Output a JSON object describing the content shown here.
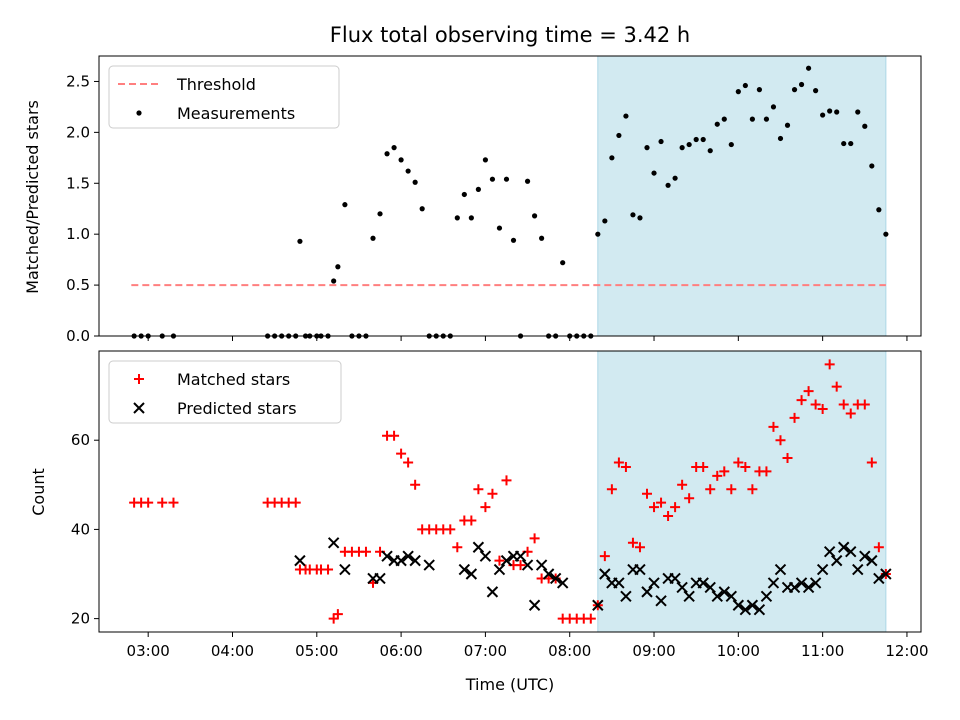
{
  "chart_data": [
    {
      "type": "scatter",
      "title": "Flux total observing time = 3.42 h",
      "xlabel": "",
      "ylabel": "Matched/Predicted stars",
      "xlim": [
        "02:25",
        "12:10"
      ],
      "ylim": [
        0,
        2.75
      ],
      "x_ticks": [
        "03:00",
        "04:00",
        "05:00",
        "06:00",
        "07:00",
        "08:00",
        "09:00",
        "10:00",
        "11:00",
        "12:00"
      ],
      "y_ticks": [
        "0.0",
        "0.5",
        "1.0",
        "1.5",
        "2.0",
        "2.5"
      ],
      "legend_position": "top-left",
      "highlight_span": {
        "start": "08:20",
        "end": "11:45",
        "color": "#add8e6"
      },
      "series": [
        {
          "name": "Threshold",
          "kind": "dashed-line",
          "color": "#ff7f7f",
          "x": [
            "02:48",
            "11:45"
          ],
          "y": [
            0.5,
            0.5
          ]
        },
        {
          "name": "Measurements",
          "kind": "dot",
          "color": "#000000",
          "x": [
            "02:50",
            "02:55",
            "03:00",
            "03:10",
            "03:18",
            "04:25",
            "04:30",
            "04:35",
            "04:40",
            "04:45",
            "04:48",
            "04:52",
            "04:55",
            "05:00",
            "05:03",
            "05:08",
            "05:12",
            "05:15",
            "05:20",
            "05:25",
            "05:30",
            "05:35",
            "05:40",
            "05:45",
            "05:50",
            "05:55",
            "06:00",
            "06:05",
            "06:10",
            "06:15",
            "06:20",
            "06:25",
            "06:30",
            "06:35",
            "06:40",
            "06:45",
            "06:50",
            "06:55",
            "07:00",
            "07:05",
            "07:10",
            "07:15",
            "07:20",
            "07:25",
            "07:30",
            "07:35",
            "07:40",
            "07:45",
            "07:50",
            "07:55",
            "08:00",
            "08:05",
            "08:10",
            "08:15",
            "08:20",
            "08:25",
            "08:30",
            "08:35",
            "08:40",
            "08:45",
            "08:50",
            "08:55",
            "09:00",
            "09:05",
            "09:10",
            "09:15",
            "09:20",
            "09:25",
            "09:30",
            "09:35",
            "09:40",
            "09:45",
            "09:50",
            "09:55",
            "10:00",
            "10:05",
            "10:10",
            "10:15",
            "10:20",
            "10:25",
            "10:30",
            "10:35",
            "10:40",
            "10:45",
            "10:50",
            "10:55",
            "11:00",
            "11:05",
            "11:10",
            "11:15",
            "11:20",
            "11:25",
            "11:30",
            "11:35",
            "11:40",
            "11:45"
          ],
          "y": [
            0,
            0,
            0,
            0,
            0,
            0,
            0,
            0,
            0,
            0,
            0.93,
            0,
            0,
            0,
            0,
            0,
            0.54,
            0.68,
            1.29,
            0,
            0,
            0,
            0.96,
            1.2,
            1.79,
            1.85,
            1.73,
            1.62,
            1.51,
            1.25,
            0,
            0,
            0,
            0,
            1.16,
            1.39,
            1.16,
            1.44,
            1.73,
            1.54,
            1.06,
            1.54,
            0.94,
            0,
            1.52,
            1.18,
            0.96,
            0,
            0,
            0.72,
            0,
            0,
            0,
            0,
            1.0,
            1.13,
            1.75,
            1.97,
            2.16,
            1.19,
            1.16,
            1.85,
            1.6,
            1.91,
            1.48,
            1.55,
            1.85,
            1.88,
            1.93,
            1.93,
            1.82,
            2.08,
            2.13,
            1.88,
            2.4,
            2.46,
            2.13,
            2.42,
            2.13,
            2.25,
            1.94,
            2.07,
            2.42,
            2.47,
            2.63,
            2.41,
            2.17,
            2.21,
            2.2,
            1.89,
            1.89,
            2.2,
            2.06,
            1.67,
            1.24,
            1.0
          ]
        }
      ]
    },
    {
      "type": "scatter",
      "title": "",
      "xlabel": "Time (UTC)",
      "ylabel": "Count",
      "xlim": [
        "02:25",
        "12:10"
      ],
      "ylim": [
        17,
        80
      ],
      "x_ticks": [
        "03:00",
        "04:00",
        "05:00",
        "06:00",
        "07:00",
        "08:00",
        "09:00",
        "10:00",
        "11:00",
        "12:00"
      ],
      "y_ticks": [
        "20",
        "40",
        "60"
      ],
      "legend_position": "top-left",
      "highlight_span": {
        "start": "08:20",
        "end": "11:45",
        "color": "#add8e6"
      },
      "series": [
        {
          "name": "Matched stars",
          "kind": "plus",
          "color": "#ff0000",
          "x": [
            "02:50",
            "02:55",
            "03:00",
            "03:10",
            "03:18",
            "04:25",
            "04:30",
            "04:35",
            "04:40",
            "04:45",
            "04:48",
            "04:52",
            "04:55",
            "05:00",
            "05:03",
            "05:08",
            "05:12",
            "05:15",
            "05:20",
            "05:25",
            "05:30",
            "05:35",
            "05:40",
            "05:45",
            "05:50",
            "05:55",
            "06:00",
            "06:05",
            "06:10",
            "06:15",
            "06:20",
            "06:25",
            "06:30",
            "06:35",
            "06:40",
            "06:45",
            "06:50",
            "06:55",
            "07:00",
            "07:05",
            "07:10",
            "07:15",
            "07:20",
            "07:25",
            "07:30",
            "07:35",
            "07:40",
            "07:45",
            "07:50",
            "07:55",
            "08:00",
            "08:05",
            "08:10",
            "08:15",
            "08:20",
            "08:25",
            "08:30",
            "08:35",
            "08:40",
            "08:45",
            "08:50",
            "08:55",
            "09:00",
            "09:05",
            "09:10",
            "09:15",
            "09:20",
            "09:25",
            "09:30",
            "09:35",
            "09:40",
            "09:45",
            "09:50",
            "09:55",
            "10:00",
            "10:05",
            "10:10",
            "10:15",
            "10:20",
            "10:25",
            "10:30",
            "10:35",
            "10:40",
            "10:45",
            "10:50",
            "10:55",
            "11:00",
            "11:05",
            "11:10",
            "11:15",
            "11:20",
            "11:25",
            "11:30",
            "11:35",
            "11:40",
            "11:45"
          ],
          "y": [
            46,
            46,
            46,
            46,
            46,
            46,
            46,
            46,
            46,
            46,
            31,
            31,
            31,
            31,
            31,
            31,
            20,
            21,
            35,
            35,
            35,
            35,
            28,
            35,
            61,
            61,
            57,
            55,
            50,
            40,
            40,
            40,
            40,
            40,
            36,
            42,
            42,
            49,
            45,
            48,
            33,
            51,
            32,
            32,
            35,
            38,
            29,
            29,
            29,
            20,
            20,
            20,
            20,
            20,
            23,
            34,
            49,
            55,
            54,
            37,
            36,
            48,
            45,
            46,
            43,
            45,
            50,
            47,
            54,
            54,
            49,
            52,
            53,
            49,
            55,
            54,
            49,
            53,
            53,
            63,
            60,
            56,
            65,
            69,
            71,
            68,
            67,
            77,
            72,
            68,
            66,
            68,
            68,
            55,
            36,
            30
          ]
        },
        {
          "name": "Predicted stars",
          "kind": "cross",
          "color": "#000000",
          "x": [
            "04:48",
            "05:12",
            "05:20",
            "05:40",
            "05:45",
            "05:50",
            "05:55",
            "06:00",
            "06:05",
            "06:10",
            "06:20",
            "06:45",
            "06:50",
            "06:55",
            "07:00",
            "07:05",
            "07:10",
            "07:15",
            "07:20",
            "07:25",
            "07:30",
            "07:35",
            "07:40",
            "07:45",
            "07:50",
            "07:55",
            "08:20",
            "08:25",
            "08:30",
            "08:35",
            "08:40",
            "08:45",
            "08:50",
            "08:55",
            "09:00",
            "09:05",
            "09:10",
            "09:15",
            "09:20",
            "09:25",
            "09:30",
            "09:35",
            "09:40",
            "09:45",
            "09:50",
            "09:55",
            "10:00",
            "10:05",
            "10:10",
            "10:15",
            "10:20",
            "10:25",
            "10:30",
            "10:35",
            "10:40",
            "10:45",
            "10:50",
            "10:55",
            "11:00",
            "11:05",
            "11:10",
            "11:15",
            "11:20",
            "11:25",
            "11:30",
            "11:35",
            "11:40",
            "11:45"
          ],
          "y": [
            33,
            37,
            31,
            29,
            29,
            34,
            33,
            33,
            34,
            33,
            32,
            31,
            30,
            36,
            34,
            26,
            31,
            33,
            34,
            34,
            32,
            23,
            32,
            30,
            29,
            28,
            23,
            30,
            28,
            28,
            25,
            31,
            31,
            26,
            28,
            24,
            29,
            29,
            27,
            25,
            28,
            28,
            27,
            25,
            26,
            25,
            23,
            22,
            23,
            22,
            25,
            28,
            31,
            27,
            27,
            28,
            27,
            28,
            31,
            35,
            33,
            36,
            35,
            31,
            34,
            33,
            29,
            30
          ]
        }
      ]
    }
  ]
}
